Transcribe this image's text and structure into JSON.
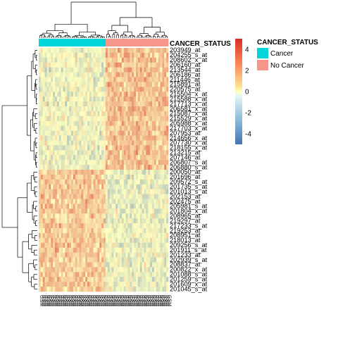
{
  "chart_data": {
    "type": "heatmap",
    "annotation": {
      "title": "CANCER_STATUS",
      "levels": [
        {
          "name": "Cancer",
          "color": "#00d5d8"
        },
        {
          "name": "No Cancer",
          "color": "#f8958a"
        }
      ]
    },
    "color_scale": {
      "ticks": [
        4,
        2,
        0,
        -2,
        -4
      ],
      "low_color": "#4575b4",
      "mid_color": "#ffffbf",
      "high_color": "#d73027",
      "range": [
        -5,
        5
      ]
    },
    "rows": [
      {
        "id": "203949_at",
        "group": "up"
      },
      {
        "id": "204255_s_at",
        "group": "up"
      },
      {
        "id": "208602_x_at",
        "group": "up"
      },
      {
        "id": "206160_at",
        "group": "up"
      },
      {
        "id": "213544_at",
        "group": "up"
      },
      {
        "id": "206186_at",
        "group": "up"
      },
      {
        "id": "211446_at",
        "group": "up"
      },
      {
        "id": "215891_at",
        "group": "up"
      },
      {
        "id": "220575_at",
        "group": "up"
      },
      {
        "id": "215504_x_at",
        "group": "up"
      },
      {
        "id": "215588_x_at",
        "group": "up"
      },
      {
        "id": "217713_x_at",
        "group": "up"
      },
      {
        "id": "206581_x_at",
        "group": "up"
      },
      {
        "id": "215087_x_at",
        "group": "up"
      },
      {
        "id": "215529_x_at",
        "group": "up"
      },
      {
        "id": "205988_x_at",
        "group": "up"
      },
      {
        "id": "217703_x_at",
        "group": "up"
      },
      {
        "id": "207953_at",
        "group": "up"
      },
      {
        "id": "214656_x_at",
        "group": "up"
      },
      {
        "id": "207730_x_at",
        "group": "up"
      },
      {
        "id": "218155_x_at",
        "group": "up"
      },
      {
        "id": "213215_at",
        "group": "up"
      },
      {
        "id": "207146_at",
        "group": "up"
      },
      {
        "id": "206807_s_at",
        "group": "up"
      },
      {
        "id": "206880_s_at",
        "group": "up"
      },
      {
        "id": "200050_at",
        "group": "down"
      },
      {
        "id": "201696_at",
        "group": "down"
      },
      {
        "id": "209572_s_at",
        "group": "down"
      },
      {
        "id": "201735_s_at",
        "group": "down"
      },
      {
        "id": "201013_s_at",
        "group": "down"
      },
      {
        "id": "202153_at",
        "group": "down"
      },
      {
        "id": "202475_at",
        "group": "down"
      },
      {
        "id": "205981_s_at",
        "group": "down"
      },
      {
        "id": "201804_x_at",
        "group": "down"
      },
      {
        "id": "208965_at",
        "group": "down"
      },
      {
        "id": "219297_at",
        "group": "down"
      },
      {
        "id": "217233_s_at",
        "group": "down"
      },
      {
        "id": "219253_at",
        "group": "down"
      },
      {
        "id": "208951_at",
        "group": "down"
      },
      {
        "id": "218013_at",
        "group": "down"
      },
      {
        "id": "209256_s_at",
        "group": "down"
      },
      {
        "id": "201911_s_at",
        "group": "down"
      },
      {
        "id": "201233_at",
        "group": "down"
      },
      {
        "id": "202939_s_at",
        "group": "down"
      },
      {
        "id": "208837_at",
        "group": "down"
      },
      {
        "id": "200822_x_at",
        "group": "down"
      },
      {
        "id": "201088_s_at",
        "group": "down"
      },
      {
        "id": "201259_s_at",
        "group": "down"
      },
      {
        "id": "201609_x_at",
        "group": "down"
      },
      {
        "id": "201045_s_at",
        "group": "down"
      }
    ],
    "columns": {
      "cancer_count": 33,
      "no_cancer_count": 31,
      "label_prefix": "GSM"
    },
    "value_pattern": {
      "up_rows": {
        "Cancer": -0.4,
        "No Cancer": 1.5
      },
      "down_rows": {
        "Cancer": 1.3,
        "No Cancer": -0.5
      }
    }
  }
}
